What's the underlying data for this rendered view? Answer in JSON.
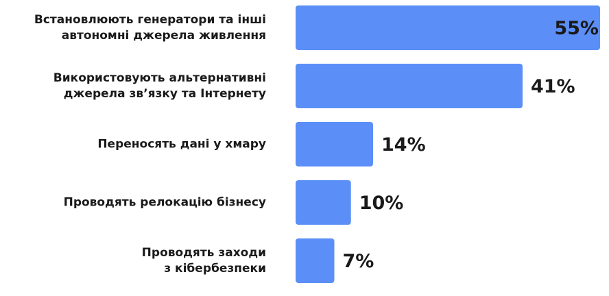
{
  "chart_data": {
    "type": "bar",
    "orientation": "horizontal",
    "categories": [
      "Встановлюють генератори та інші\nавтономні джерела живлення",
      "Використовують альтернативні\nджерела зв’язку та Інтернету",
      "Переносять дані у хмару",
      "Проводять релокацію бізнесу",
      "Проводять заходи\nз кібербезпеки"
    ],
    "values": [
      55,
      41,
      14,
      10,
      7
    ],
    "value_labels": [
      "55%",
      "41%",
      "14%",
      "10%",
      "7%"
    ],
    "color": "#5b8ff7"
  }
}
